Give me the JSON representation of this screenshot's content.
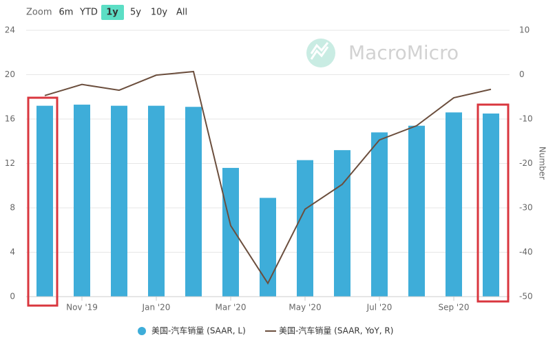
{
  "zoom": {
    "label": "Zoom",
    "buttons": [
      "6m",
      "YTD",
      "1y",
      "5y",
      "10y",
      "All"
    ],
    "active": 2
  },
  "watermark": "MacroMicro",
  "chart_data": {
    "type": "bar-line",
    "categories": [
      null,
      "Nov '19",
      null,
      "Jan '20",
      null,
      "Mar '20",
      null,
      "May '20",
      null,
      "Jul '20",
      null,
      "Sep '20",
      null
    ],
    "series": [
      {
        "name": "美国-汽车销量 (SAAR, L)",
        "color": "#3eadd9",
        "values": [
          17.2,
          17.3,
          17.2,
          17.2,
          17.1,
          11.6,
          8.9,
          12.3,
          13.2,
          14.8,
          15.4,
          16.6,
          16.5
        ]
      },
      {
        "name": "美国-汽车销量 (SAAR, YoY, R)",
        "color": "#6b4e3d",
        "axis": "y2",
        "values": [
          -4.7,
          -2.2,
          -3.5,
          -0.1,
          0.7,
          -34,
          -47,
          -30.3,
          -24.7,
          -14.7,
          -11.5,
          -5.2,
          -3.3
        ]
      }
    ],
    "ylim": [
      0,
      24
    ],
    "yticks": [
      0,
      4,
      8,
      12,
      16,
      20,
      24
    ],
    "y2lim": [
      -50,
      10
    ],
    "y2ticks": [
      -50,
      -40,
      -30,
      -20,
      -10,
      0,
      10
    ],
    "y2label": "Number",
    "grid": true
  }
}
